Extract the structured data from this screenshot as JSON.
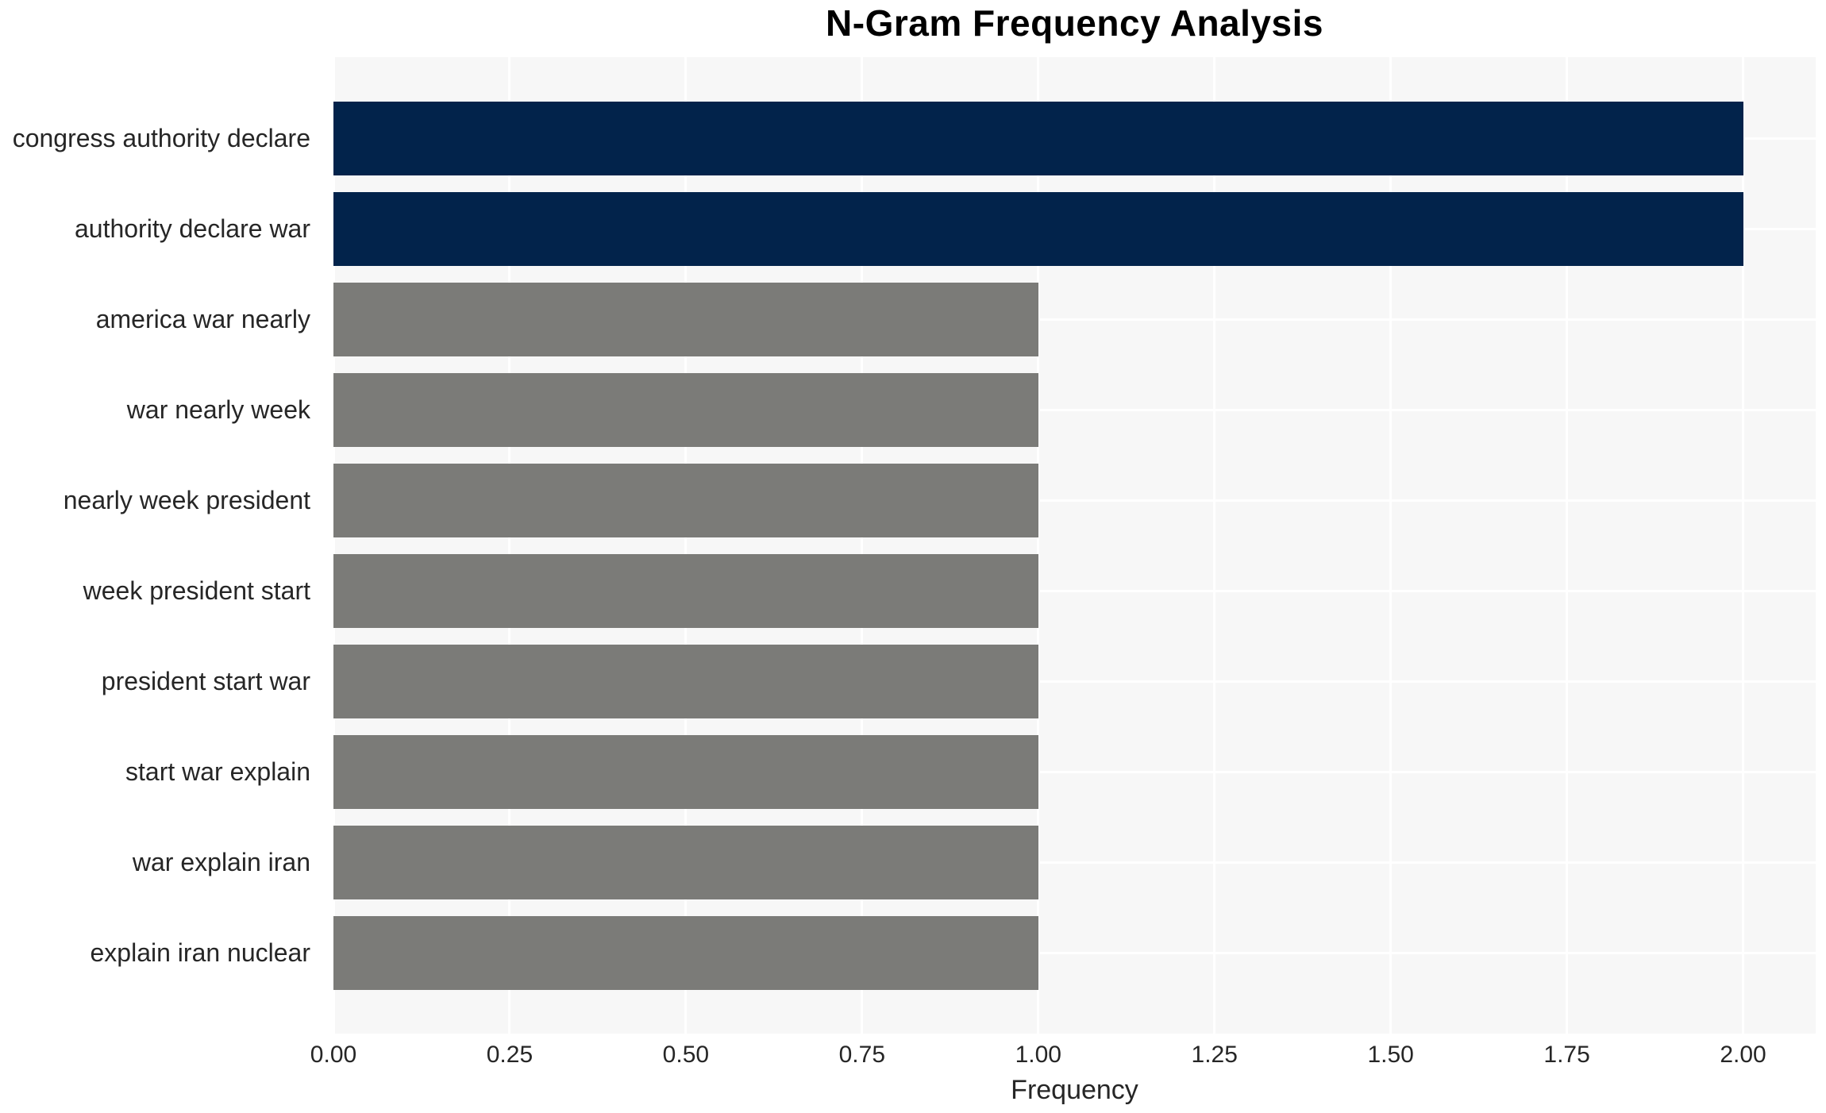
{
  "title": "N-Gram Frequency Analysis",
  "chart_data": {
    "type": "bar",
    "orientation": "horizontal",
    "title": "N-Gram Frequency Analysis",
    "xlabel": "Frequency",
    "ylabel": "",
    "categories": [
      "congress authority declare",
      "authority declare war",
      "america war nearly",
      "war nearly week",
      "nearly week president",
      "week president start",
      "president start war",
      "start war explain",
      "war explain iran",
      "explain iran nuclear"
    ],
    "values": [
      2,
      2,
      1,
      1,
      1,
      1,
      1,
      1,
      1,
      1
    ],
    "bar_colors": [
      "#02234b",
      "#02234b",
      "#7b7b78",
      "#7b7b78",
      "#7b7b78",
      "#7b7b78",
      "#7b7b78",
      "#7b7b78",
      "#7b7b78",
      "#7b7b78"
    ],
    "xticks": [
      "0.00",
      "0.25",
      "0.50",
      "0.75",
      "1.00",
      "1.25",
      "1.50",
      "1.75",
      "2.00"
    ],
    "xlim": [
      0,
      2.103
    ],
    "grid": true,
    "legend": false
  },
  "style": {
    "plot_background": "#f7f7f7",
    "grid_color": "#ffffff",
    "tick_text_color": "#262626",
    "title_color": "#000000",
    "highlight_bar_color": "#02234b",
    "default_bar_color": "#7b7b78"
  }
}
